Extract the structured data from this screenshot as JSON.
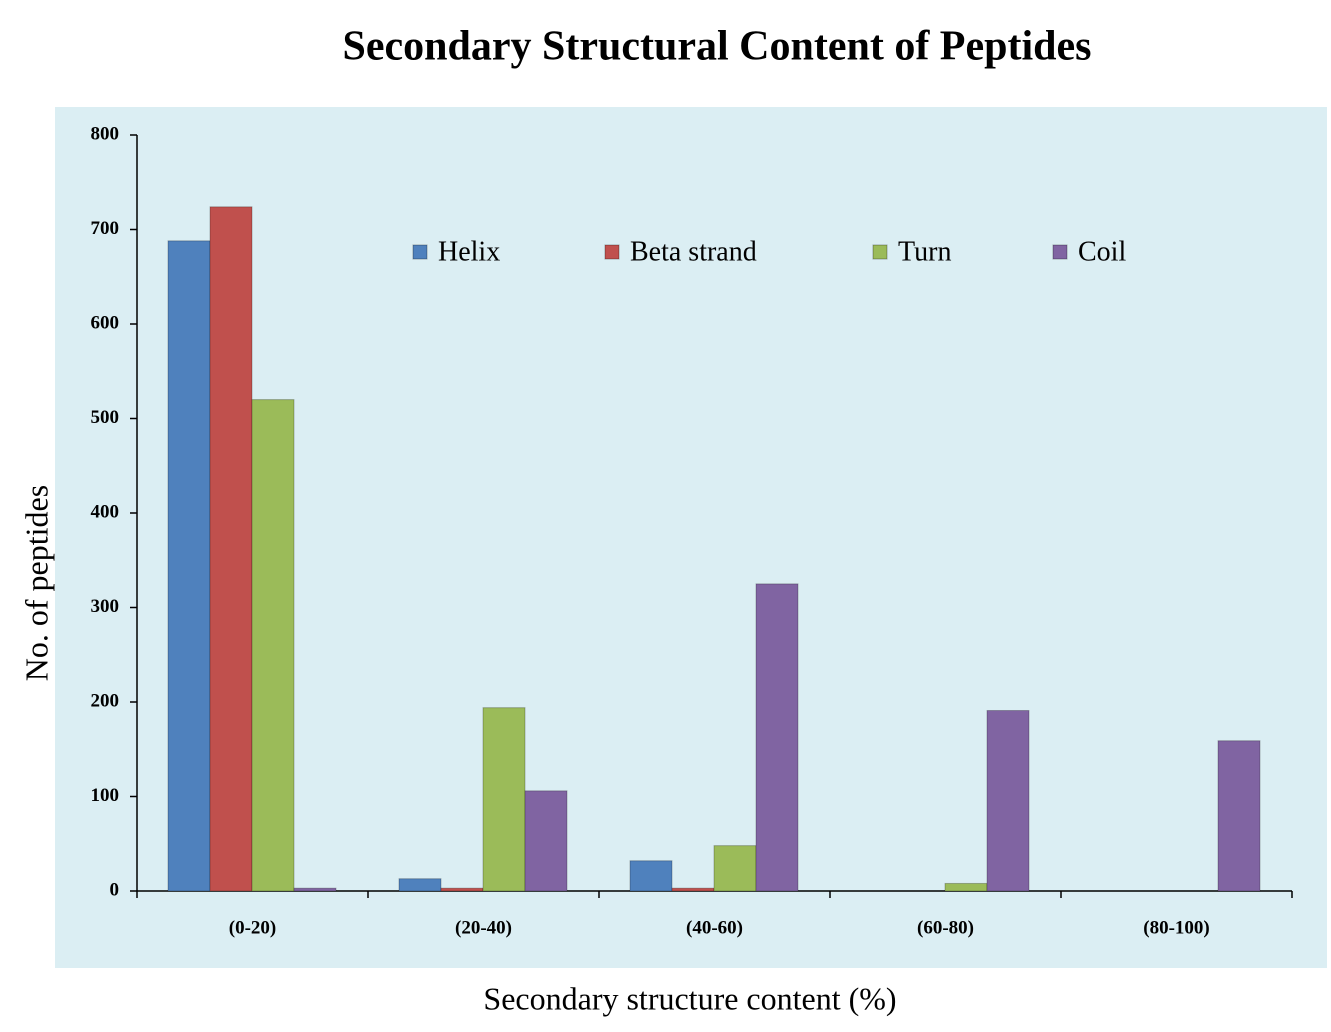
{
  "chart_data": {
    "type": "bar",
    "title": "Secondary Structural Content of Peptides",
    "x_label": "Secondary structure content (%)",
    "y_label": "No. of peptides",
    "categories": [
      "(0-20)",
      "(20-40)",
      "(40-60)",
      "(60-80)",
      "(80-100)"
    ],
    "series": [
      {
        "name": "Helix",
        "color": "#4f81bd",
        "values": [
          688,
          13,
          32,
          0,
          0
        ]
      },
      {
        "name": "Beta strand",
        "color": "#c0504d",
        "values": [
          724,
          3,
          3,
          0,
          0
        ]
      },
      {
        "name": "Turn",
        "color": "#9bbb59",
        "values": [
          520,
          194,
          48,
          8,
          0
        ]
      },
      {
        "name": "Coil",
        "color": "#8064a2",
        "values": [
          3,
          106,
          325,
          191,
          159
        ]
      }
    ],
    "ylim": [
      0,
      800
    ],
    "yticks": [
      0,
      100,
      200,
      300,
      400,
      500,
      600,
      700,
      800
    ],
    "grid": false,
    "legend": "top"
  }
}
